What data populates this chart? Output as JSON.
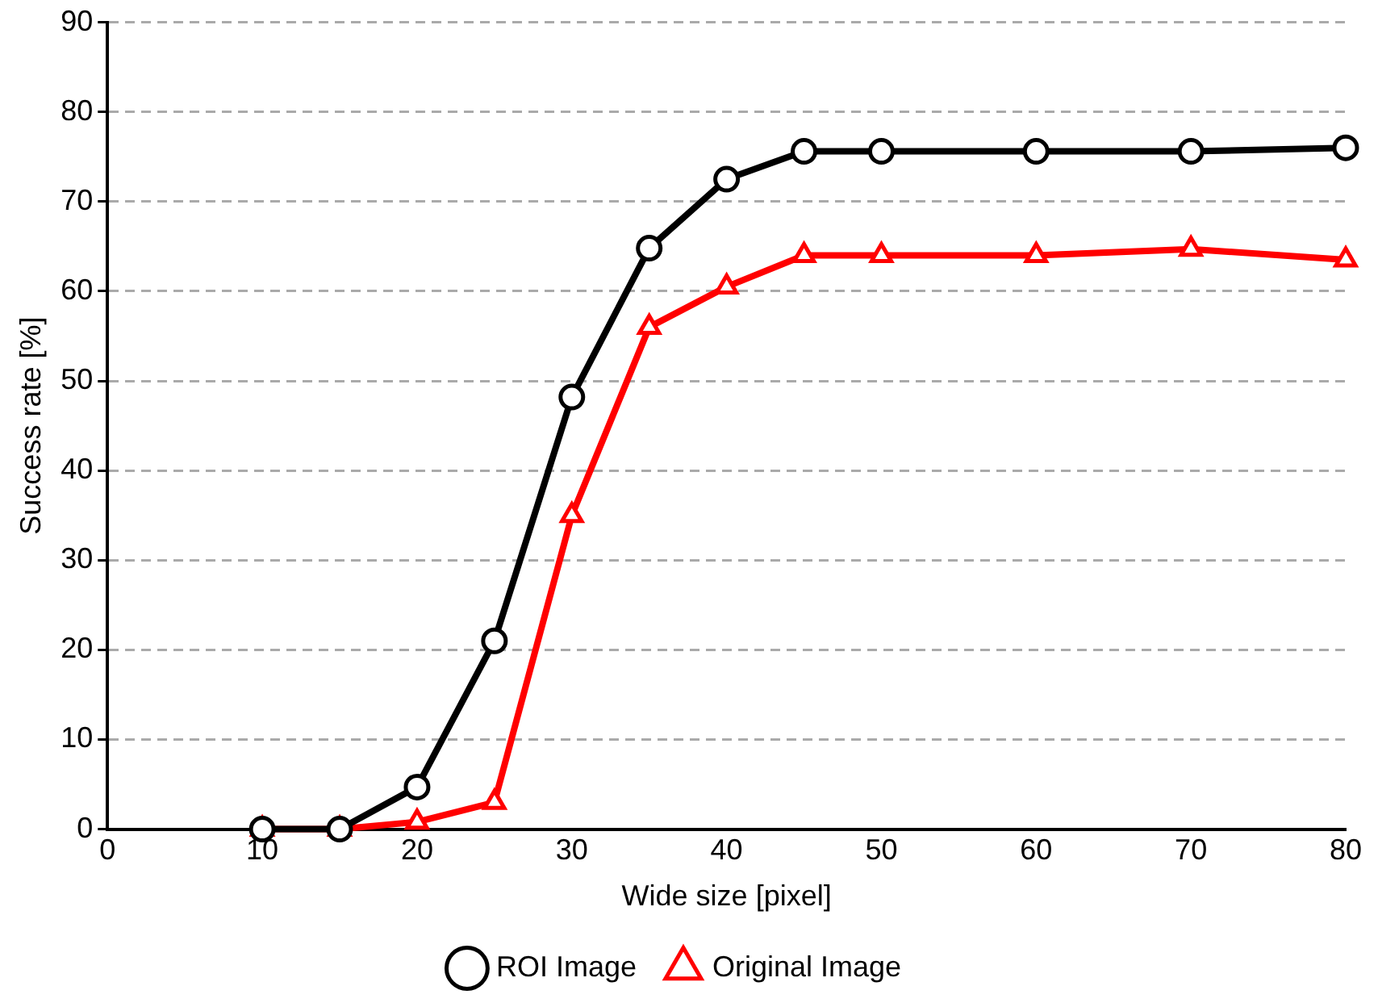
{
  "chart_data": {
    "type": "line",
    "xlabel": "Wide size [pixel]",
    "ylabel": "Success rate [%]",
    "x": [
      10,
      15,
      20,
      25,
      30,
      35,
      40,
      45,
      50,
      60,
      70,
      80
    ],
    "series": [
      {
        "name": "ROI Image",
        "color": "#000000",
        "marker": "circle",
        "values": [
          0,
          0,
          4.7,
          21,
          48.2,
          64.8,
          72.5,
          75.6,
          75.6,
          75.6,
          75.6,
          76
        ]
      },
      {
        "name": "Original Image",
        "color": "#ff0000",
        "marker": "triangle",
        "values": [
          0,
          0,
          0.8,
          3,
          35,
          56,
          60.5,
          64,
          64,
          64,
          64.7,
          63.5
        ]
      }
    ],
    "xlim": [
      0,
      80
    ],
    "xticks": [
      0,
      10,
      20,
      30,
      40,
      50,
      60,
      70,
      80
    ],
    "ylim": [
      0,
      90
    ],
    "yticks": [
      0,
      10,
      20,
      30,
      40,
      50,
      60,
      70,
      80,
      90
    ],
    "grid": "y",
    "legend": "bottom",
    "line_style": "solid"
  }
}
